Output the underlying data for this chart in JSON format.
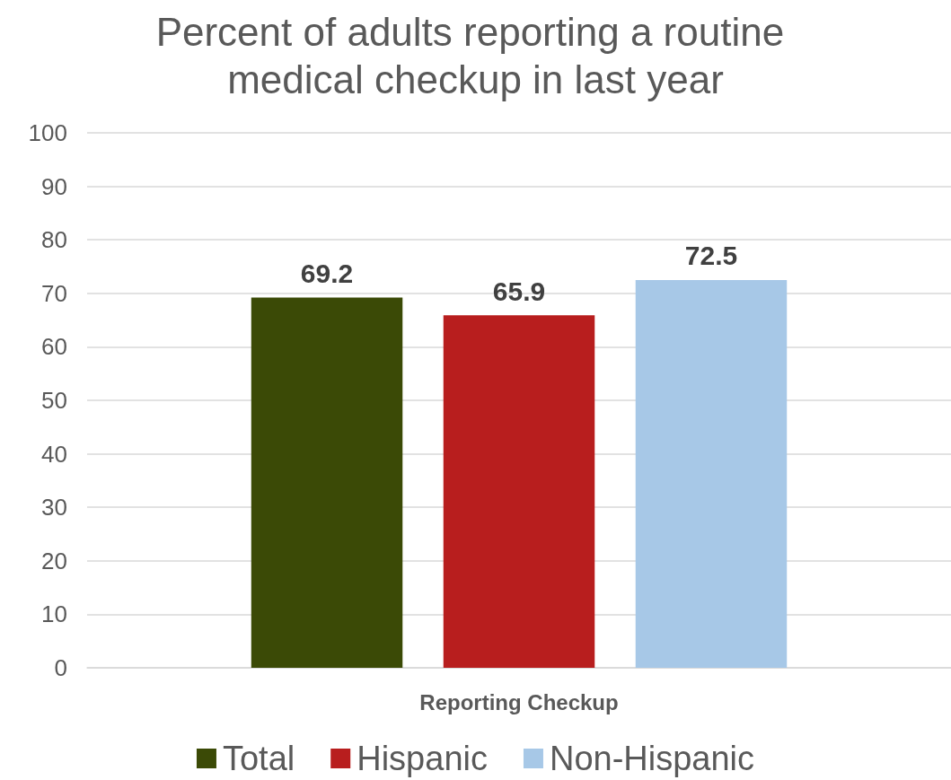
{
  "chart_data": {
    "type": "bar",
    "title": "Percent of adults reporting a routine medical checkup in last year",
    "categories": [
      "Reporting Checkup"
    ],
    "series": [
      {
        "name": "Total",
        "color": "#3b4a06",
        "values": [
          69.2
        ]
      },
      {
        "name": "Hispanic",
        "color": "#b81e1e",
        "values": [
          65.9
        ]
      },
      {
        "name": "Non-Hispanic",
        "color": "#a7c8e7",
        "values": [
          72.5
        ]
      }
    ],
    "ylim": [
      0,
      100
    ],
    "yticks": [
      0,
      10,
      20,
      30,
      40,
      50,
      60,
      70,
      80,
      90,
      100
    ],
    "grid": "y",
    "legend": "bottom",
    "data_labels": true
  }
}
